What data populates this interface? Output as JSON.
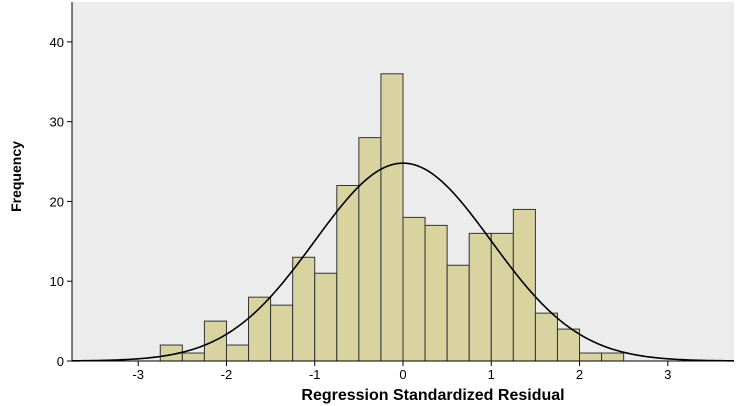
{
  "chart_data": {
    "type": "histogram",
    "title": "",
    "xlabel": "Regression Standardized Residual",
    "ylabel": "Frequency",
    "xlim": [
      -3.75,
      3.75
    ],
    "ylim": [
      0,
      45
    ],
    "x_ticks": [
      -3,
      -2,
      -1,
      0,
      1,
      2,
      3
    ],
    "y_ticks": [
      0,
      10,
      20,
      30,
      40
    ],
    "bin_width": 0.25,
    "bins": [
      {
        "start": -2.75,
        "value": 2
      },
      {
        "start": -2.5,
        "value": 1
      },
      {
        "start": -2.25,
        "value": 5
      },
      {
        "start": -2.0,
        "value": 2
      },
      {
        "start": -1.75,
        "value": 8
      },
      {
        "start": -1.5,
        "value": 7
      },
      {
        "start": -1.25,
        "value": 13
      },
      {
        "start": -1.0,
        "value": 11
      },
      {
        "start": -0.75,
        "value": 22
      },
      {
        "start": -0.5,
        "value": 28
      },
      {
        "start": -0.25,
        "value": 36
      },
      {
        "start": 0.0,
        "value": 18
      },
      {
        "start": 0.25,
        "value": 17
      },
      {
        "start": 0.5,
        "value": 12
      },
      {
        "start": 0.75,
        "value": 16
      },
      {
        "start": 1.0,
        "value": 16
      },
      {
        "start": 1.25,
        "value": 19
      },
      {
        "start": 1.5,
        "value": 6
      },
      {
        "start": 1.75,
        "value": 4
      },
      {
        "start": 2.0,
        "value": 1
      },
      {
        "start": 2.25,
        "value": 1
      }
    ],
    "normal_curve": {
      "mean": 0,
      "std_dev": 1,
      "peak": 24.8
    },
    "grid": false,
    "colors": {
      "plot_background": "#ececec",
      "bar_fill": "#d9d3a0",
      "bar_stroke": "#333333",
      "curve": "#000000"
    }
  }
}
